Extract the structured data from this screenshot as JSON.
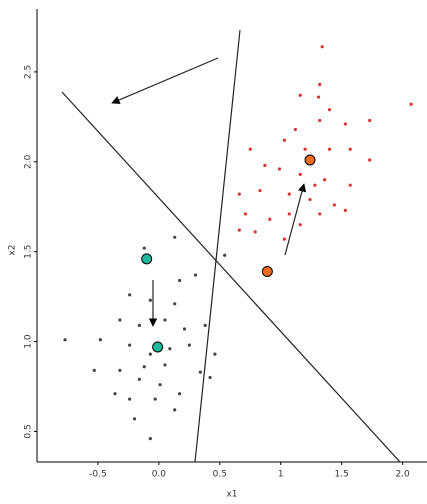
{
  "chart_data": {
    "type": "scatter",
    "xlabel": "x1",
    "ylabel": "x2",
    "xlim": [
      -1,
      2.2
    ],
    "ylim": [
      0.33,
      2.85
    ],
    "xticks": [
      {
        "value": -0.5,
        "label": "-0.5"
      },
      {
        "value": 0,
        "label": "0.0"
      },
      0.5,
      1,
      1.5,
      {
        "value": 2,
        "label": "2.0"
      }
    ],
    "yticks": [
      0.5,
      {
        "value": 1,
        "label": "1.0"
      },
      1.5,
      {
        "value": 2,
        "label": "2.0"
      },
      2.5
    ],
    "series": [
      {
        "color": "#e03030",
        "size": 1.6,
        "x": [
          1.34,
          1.31,
          1.16,
          1.32,
          1.4,
          1.12,
          1.32,
          1.53,
          1.73,
          2.07,
          1.03,
          1.2,
          1.4,
          1.57,
          1.73,
          0.75,
          0.87,
          0.99,
          1.16,
          1.36,
          1.57,
          0.66,
          0.83,
          1.07,
          1.24,
          1.44,
          0.71,
          0.91,
          1.16,
          1.32,
          0.79,
          0.66,
          1.03,
          1.53,
          1.28,
          1.07
        ],
        "values": [
          2.64,
          2.36,
          2.37,
          2.43,
          2.29,
          2.18,
          2.23,
          2.21,
          2.23,
          2.32,
          2.12,
          2.07,
          2.07,
          2.07,
          2.01,
          2.07,
          1.98,
          1.96,
          1.93,
          1.9,
          1.87,
          1.82,
          1.84,
          1.82,
          1.79,
          1.76,
          1.71,
          1.68,
          1.65,
          1.71,
          1.61,
          1.62,
          1.57,
          1.73,
          1.87,
          1.71
        ]
      },
      {
        "color": "#444444",
        "size": 1.6,
        "x": [
          0.13,
          -0.12,
          0.3,
          0.17,
          -0.24,
          -0.07,
          0.13,
          -0.32,
          -0.16,
          0.05,
          0.21,
          0.38,
          -0.48,
          -0.24,
          -0.07,
          0.09,
          0.25,
          -0.77,
          0.46,
          -0.53,
          -0.32,
          -0.12,
          0.05,
          0.34,
          -0.16,
          0.01,
          0.42,
          -0.24,
          -0.03,
          0.13,
          -0.2,
          -0.07,
          0.54,
          -0.36,
          0.17
        ],
        "values": [
          1.58,
          1.52,
          1.37,
          1.34,
          1.26,
          1.23,
          1.21,
          1.12,
          1.09,
          1.12,
          1.07,
          1.09,
          1.01,
          0.98,
          0.93,
          0.96,
          0.98,
          1.01,
          0.93,
          0.84,
          0.84,
          0.86,
          0.87,
          0.83,
          0.79,
          0.76,
          0.8,
          0.68,
          0.68,
          0.62,
          0.57,
          0.46,
          1.48,
          0.71,
          0.71
        ]
      },
      {
        "color": "#f06a1e",
        "size": 5,
        "x": [
          1.24,
          0.89
        ],
        "values": [
          2.01,
          1.39
        ]
      },
      {
        "color": "#1bb89a",
        "size": 5,
        "x": [
          -0.1,
          -0.01
        ],
        "values": [
          1.46,
          0.97
        ]
      }
    ]
  }
}
